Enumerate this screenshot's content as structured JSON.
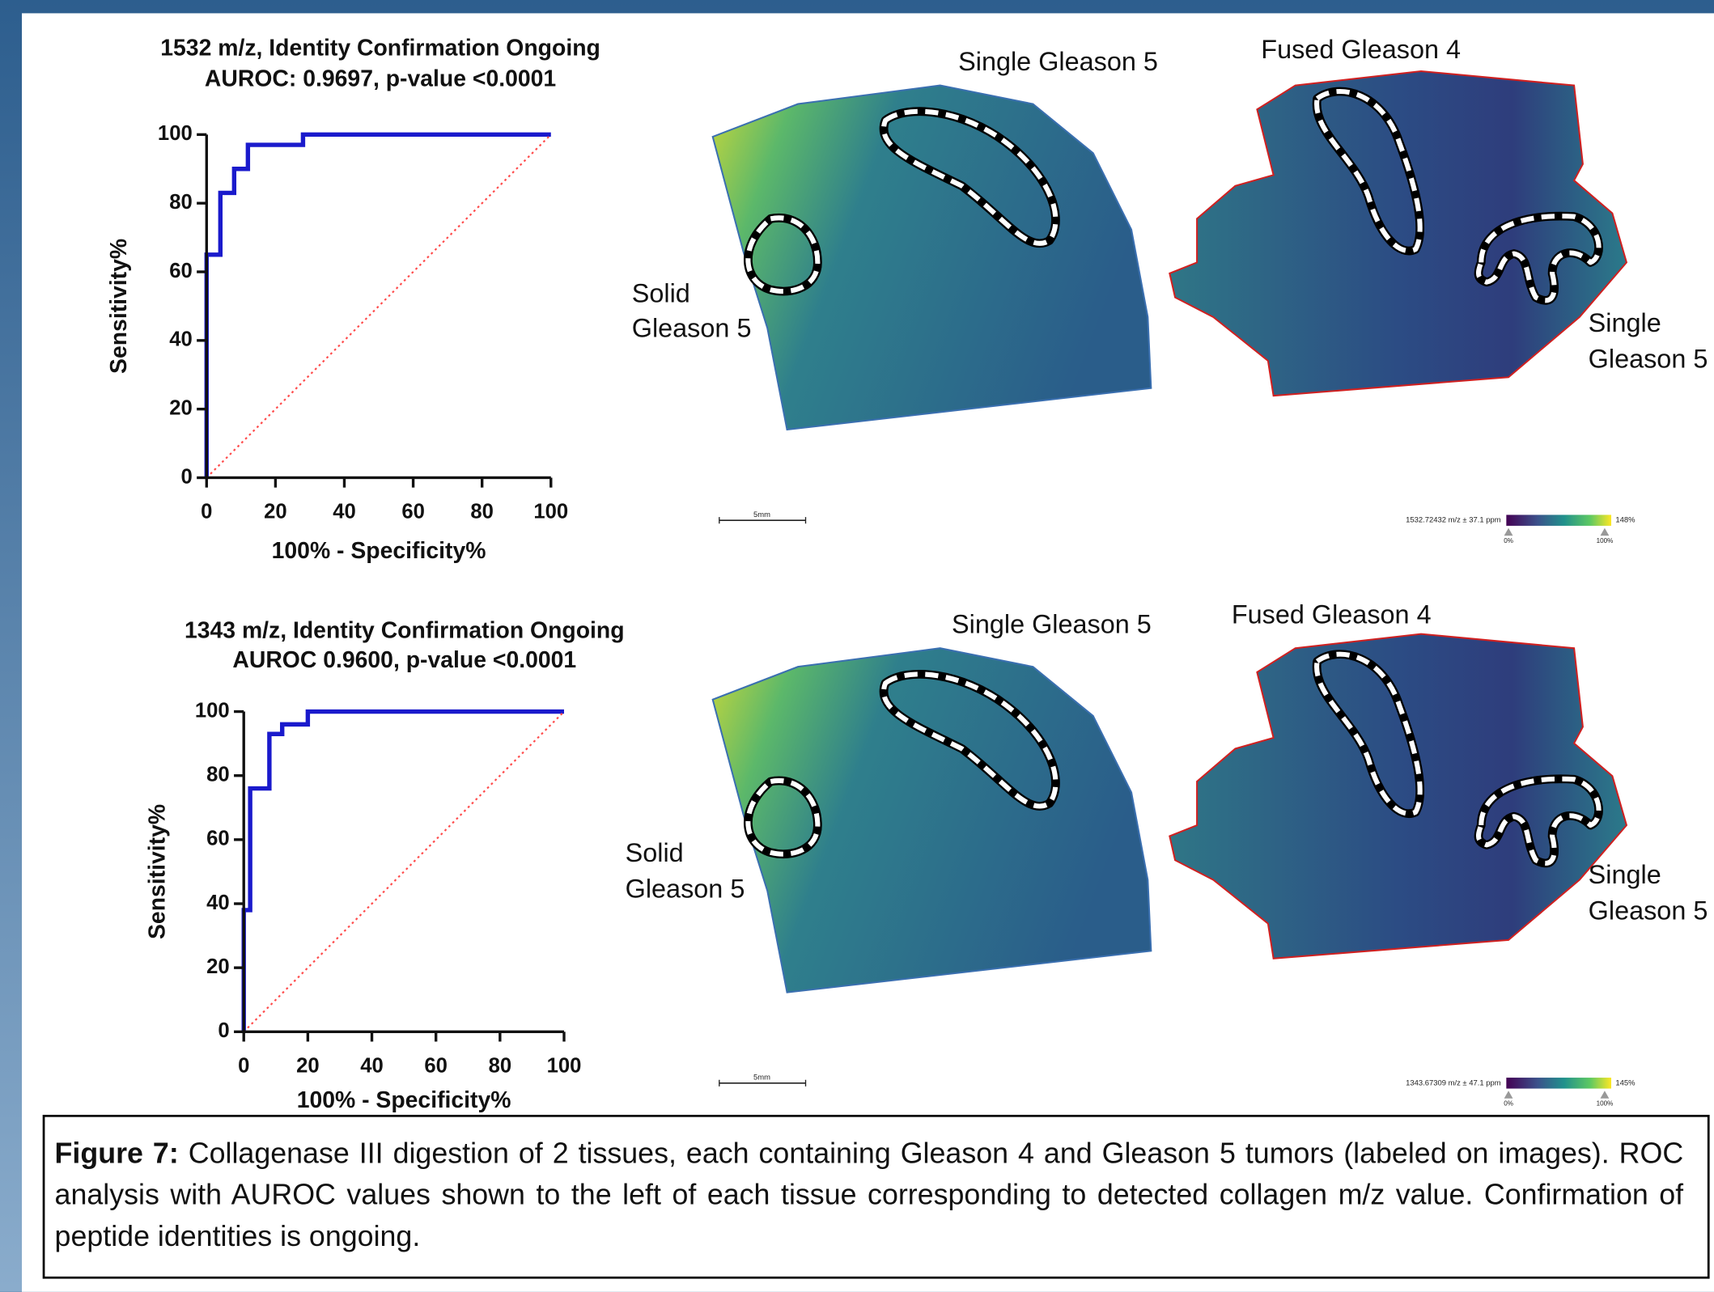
{
  "chart_data": [
    {
      "type": "line",
      "title": "1532 m/z, Identity Confirmation Ongoing",
      "subtitle": "AUROC: 0.9697, p-value <0.0001",
      "xlabel": "100% - Specificity%",
      "ylabel": "Sensitivity%",
      "xlim": [
        0,
        100
      ],
      "ylim": [
        0,
        100
      ],
      "xticks": [
        0,
        20,
        40,
        60,
        80,
        100
      ],
      "yticks": [
        0,
        20,
        40,
        60,
        80,
        100
      ],
      "series": [
        {
          "color": "#1a1acc",
          "linestyle": "solid",
          "x": [
            0,
            0,
            4,
            4,
            8,
            8,
            12,
            12,
            28,
            28,
            100
          ],
          "values": [
            0,
            65,
            65,
            83,
            83,
            90,
            90,
            97,
            97,
            100,
            100
          ]
        },
        {
          "color": "#ff4a4a",
          "linestyle": "dotted",
          "x": [
            0,
            100
          ],
          "values": [
            0,
            100
          ]
        }
      ]
    },
    {
      "type": "line",
      "title": "1343 m/z, Identity Confirmation Ongoing",
      "subtitle": "AUROC 0.9600, p-value <0.0001",
      "xlabel": "100% - Specificity%",
      "ylabel": "Sensitivity%",
      "xlim": [
        0,
        100
      ],
      "ylim": [
        0,
        100
      ],
      "xticks": [
        0,
        20,
        40,
        60,
        80,
        100
      ],
      "yticks": [
        0,
        20,
        40,
        60,
        80,
        100
      ],
      "series": [
        {
          "color": "#1a1acc",
          "linestyle": "solid",
          "x": [
            0,
            0,
            2,
            2,
            8,
            8,
            12,
            12,
            20,
            20,
            100
          ],
          "values": [
            0,
            38,
            38,
            76,
            76,
            93,
            93,
            96,
            96,
            100,
            100
          ]
        },
        {
          "color": "#ff4a4a",
          "linestyle": "dotted",
          "x": [
            0,
            100
          ],
          "values": [
            0,
            100
          ]
        }
      ]
    }
  ],
  "panels": [
    {
      "labels": [
        "Single Gleason 5",
        "Fused Gleason 4",
        "Solid",
        "Gleason 5",
        "Single",
        "Gleason 5"
      ],
      "scale_bar": "5mm",
      "colorbar": {
        "label": "1532.72432 m/z ± 37.1 ppm",
        "max": "148%",
        "low": "0%",
        "high": "100%"
      }
    },
    {
      "labels": [
        "Single Gleason 5",
        "Fused Gleason 4",
        "Solid",
        "Gleason 5",
        "Single",
        "Gleason 5"
      ],
      "scale_bar": "5mm",
      "colorbar": {
        "label": "1343.67309 m/z ± 47.1 ppm",
        "max": "145%",
        "low": "0%",
        "high": "100%"
      }
    }
  ],
  "caption": {
    "label": "Figure 7:",
    "text": "Collagenase III digestion of 2 tissues, each containing Gleason 4 and Gleason 5 tumors (labeled on images). ROC analysis with AUROC values shown to the left of each tissue corresponding to detected collagen m/z value. Confirmation of peptide identities is ongoing."
  }
}
